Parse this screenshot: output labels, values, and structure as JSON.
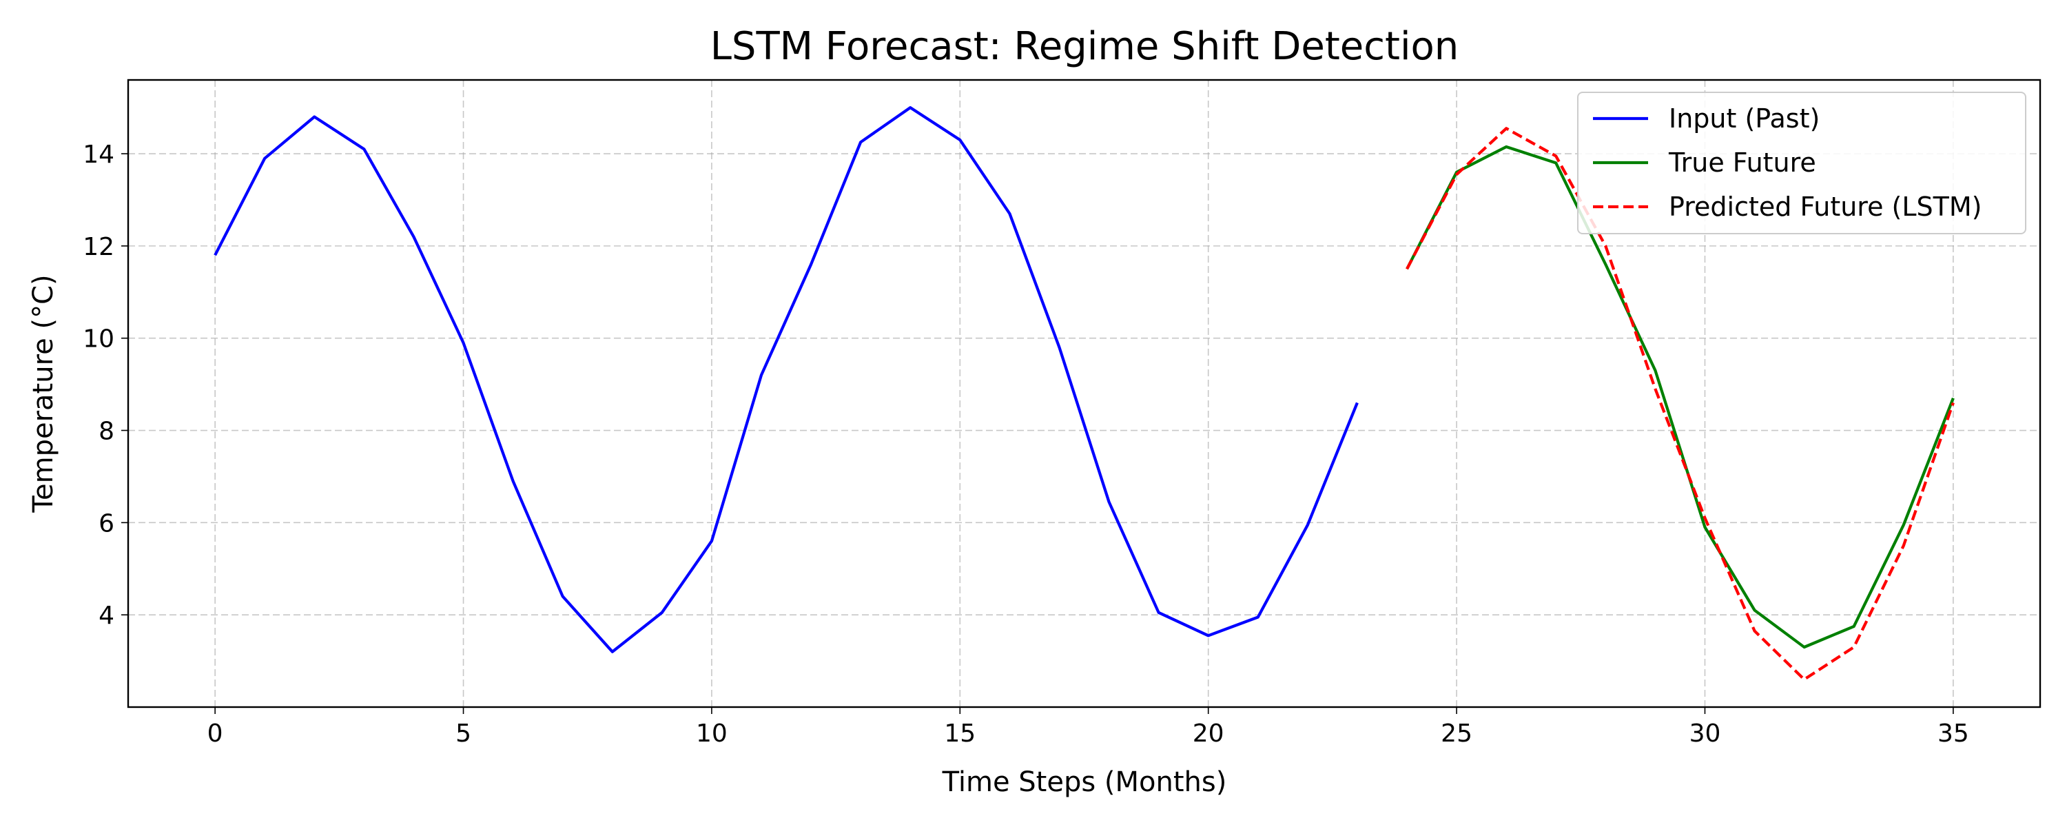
{
  "chart_data": {
    "type": "line",
    "title": "LSTM Forecast: Regime Shift Detection",
    "xlabel": "Time Steps (Months)",
    "ylabel": "Temperature (°C)",
    "xlim": [
      -1.75,
      36.75
    ],
    "ylim": [
      2.0,
      15.6
    ],
    "xticks": [
      0,
      5,
      10,
      15,
      20,
      25,
      30,
      35
    ],
    "yticks": [
      4,
      6,
      8,
      10,
      12,
      14
    ],
    "grid": true,
    "legend_position": "top-right",
    "series": [
      {
        "name": "Input (Past)",
        "color": "#0000ff",
        "style": "solid",
        "x": [
          0,
          1,
          2,
          3,
          4,
          5,
          6,
          7,
          8,
          9,
          10,
          11,
          12,
          13,
          14,
          15,
          16,
          17,
          18,
          19,
          20,
          21,
          22,
          23
        ],
        "y": [
          11.8,
          13.9,
          14.8,
          14.1,
          12.2,
          9.9,
          6.9,
          4.4,
          3.2,
          4.05,
          5.6,
          9.2,
          11.6,
          14.25,
          15.0,
          14.3,
          12.7,
          9.8,
          6.45,
          4.05,
          3.55,
          3.95,
          5.95,
          8.6
        ]
      },
      {
        "name": "True Future",
        "color": "#008000",
        "style": "solid",
        "x": [
          24,
          25,
          26,
          27,
          28,
          29,
          30,
          31,
          32,
          33,
          34,
          35
        ],
        "y": [
          11.5,
          13.6,
          14.15,
          13.8,
          11.6,
          9.3,
          5.9,
          4.1,
          3.3,
          3.75,
          5.95,
          8.7
        ]
      },
      {
        "name": "Predicted Future (LSTM)",
        "color": "#ff0000",
        "style": "dashed",
        "x": [
          24,
          25,
          26,
          27,
          28,
          29,
          30,
          31,
          32,
          33,
          34,
          35
        ],
        "y": [
          11.5,
          13.55,
          14.55,
          13.95,
          12.0,
          8.9,
          6.1,
          3.65,
          2.6,
          3.3,
          5.5,
          8.6
        ]
      }
    ]
  }
}
